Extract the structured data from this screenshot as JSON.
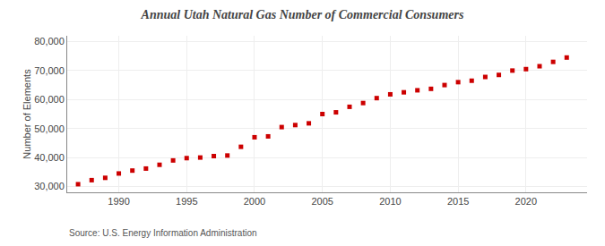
{
  "chart_data": {
    "type": "scatter",
    "title": "Annual Utah Natural Gas Number of Commercial Consumers",
    "ylabel": "Number of Elements",
    "source": "Source: U.S. Energy Information Administration",
    "x": [
      1987,
      1988,
      1989,
      1990,
      1991,
      1992,
      1993,
      1994,
      1995,
      1996,
      1997,
      1998,
      1999,
      2000,
      2001,
      2002,
      2003,
      2004,
      2005,
      2006,
      2007,
      2008,
      2009,
      2010,
      2011,
      2012,
      2013,
      2014,
      2015,
      2016,
      2017,
      2018,
      2019,
      2020,
      2021,
      2022,
      2023
    ],
    "values": [
      30800,
      32200,
      33000,
      34500,
      35500,
      36200,
      37500,
      39000,
      39800,
      40000,
      40500,
      40700,
      43700,
      47000,
      47300,
      50500,
      51200,
      51800,
      55000,
      55600,
      57500,
      58800,
      60500,
      61800,
      62500,
      63200,
      63700,
      65000,
      66000,
      66500,
      67800,
      68500,
      70000,
      70500,
      71500,
      73000,
      74500
    ],
    "color": "#cc0000",
    "marker": "square",
    "xlim": [
      1986.2,
      2024.5
    ],
    "xticks": [
      1990,
      1995,
      2000,
      2005,
      2010,
      2015,
      2020
    ],
    "ylim": [
      28000,
      82000
    ],
    "yticks": [
      {
        "value": 30000,
        "label": "30,000"
      },
      {
        "value": 40000,
        "label": "40,000"
      },
      {
        "value": 50000,
        "label": "50,000"
      },
      {
        "value": 60000,
        "label": "60,000"
      },
      {
        "value": 70000,
        "label": "70,000"
      },
      {
        "value": 80000,
        "label": "80,000"
      }
    ],
    "grid": true
  }
}
